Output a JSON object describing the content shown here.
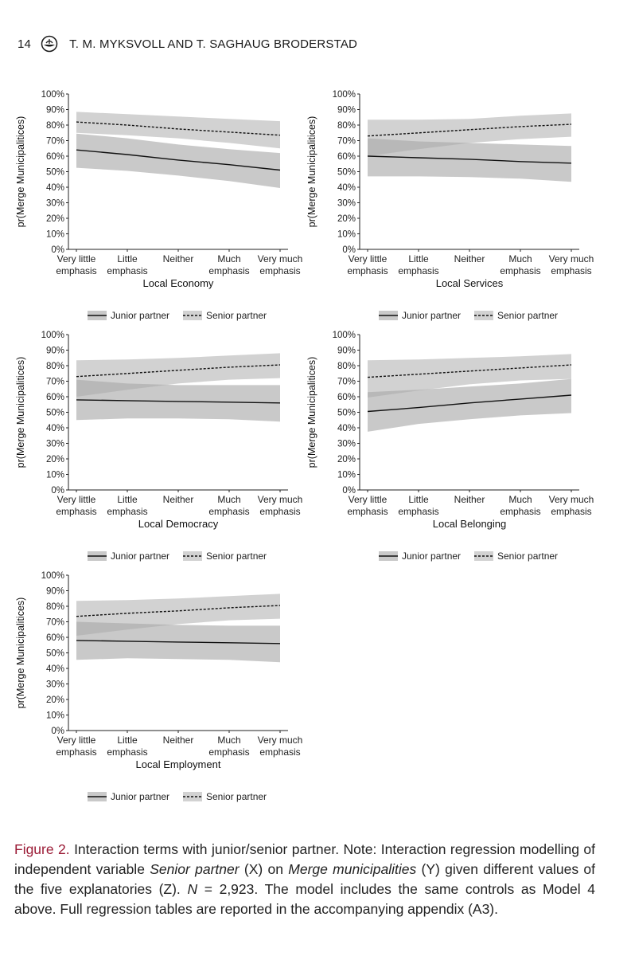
{
  "header": {
    "page_number": "14",
    "authors": "T. M. MYKSVOLL AND T. SAGHAUG BRODERSTAD"
  },
  "legend": {
    "junior": "Junior partner",
    "senior": "Senior partner"
  },
  "chart_data": [
    {
      "type": "line",
      "title": "Local Economy",
      "xlabel": "Local Economy",
      "ylabel": "pr(Merge Municipalitices)",
      "x_ticks": [
        [
          "Very little",
          "emphasis"
        ],
        [
          "Little",
          "emphasis"
        ],
        [
          "Neither",
          ""
        ],
        [
          "Much",
          "emphasis"
        ],
        [
          "Very much",
          "emphasis"
        ]
      ],
      "y_ticks": [
        "0%",
        "10%",
        "20%",
        "30%",
        "40%",
        "50%",
        "60%",
        "70%",
        "80%",
        "90%",
        "100%"
      ],
      "ylim": [
        0,
        100
      ],
      "series": [
        {
          "name": "Junior partner",
          "values": [
            64,
            61,
            57.5,
            54.5,
            51
          ],
          "lower": [
            52.5,
            50.5,
            47.5,
            44,
            39.5
          ],
          "upper": [
            74.5,
            71.5,
            67.5,
            64.5,
            62
          ]
        },
        {
          "name": "Senior partner",
          "values": [
            82,
            80,
            77.5,
            75.5,
            73.5
          ],
          "lower": [
            75,
            73.5,
            71.5,
            68.5,
            65
          ],
          "upper": [
            88.5,
            87,
            85.5,
            84,
            82.5
          ]
        }
      ]
    },
    {
      "type": "line",
      "title": "Local Services",
      "xlabel": "Local Services",
      "ylabel": "pr(Merge Municipalitices)",
      "x_ticks": [
        [
          "Very little",
          "emphasis"
        ],
        [
          "Little",
          "emphasis"
        ],
        [
          "Neither",
          ""
        ],
        [
          "Much",
          "emphasis"
        ],
        [
          "Very much",
          "emphasis"
        ]
      ],
      "y_ticks": [
        "0%",
        "10%",
        "20%",
        "30%",
        "40%",
        "50%",
        "60%",
        "70%",
        "80%",
        "90%",
        "100%"
      ],
      "ylim": [
        0,
        100
      ],
      "series": [
        {
          "name": "Junior partner",
          "values": [
            60,
            59,
            58,
            56.5,
            55.5
          ],
          "lower": [
            47,
            47,
            46.5,
            45.5,
            43.5
          ],
          "upper": [
            71.5,
            69.5,
            68.5,
            67.5,
            66.5
          ]
        },
        {
          "name": "Senior partner",
          "values": [
            73,
            75,
            77,
            79,
            80.5
          ],
          "lower": [
            60,
            64.5,
            68.5,
            71,
            72.5
          ],
          "upper": [
            83.5,
            83.5,
            84,
            86,
            87.5
          ]
        }
      ]
    },
    {
      "type": "line",
      "title": "Local Democracy",
      "xlabel": "Local Democracy",
      "ylabel": "pr(Merge Municipalitices)",
      "x_ticks": [
        [
          "Very little",
          "emphasis"
        ],
        [
          "Little",
          "emphasis"
        ],
        [
          "Neither",
          ""
        ],
        [
          "Much",
          "emphasis"
        ],
        [
          "Very much",
          "emphasis"
        ]
      ],
      "y_ticks": [
        "0%",
        "10%",
        "20%",
        "30%",
        "40%",
        "50%",
        "60%",
        "70%",
        "80%",
        "90%",
        "100%"
      ],
      "ylim": [
        0,
        100
      ],
      "series": [
        {
          "name": "Junior partner",
          "values": [
            58,
            57.5,
            57,
            56.5,
            56
          ],
          "lower": [
            45,
            46,
            46,
            45.5,
            44
          ],
          "upper": [
            71,
            68.5,
            67.5,
            67.5,
            67.5
          ]
        },
        {
          "name": "Senior partner",
          "values": [
            73,
            75,
            77,
            79,
            80.5
          ],
          "lower": [
            60,
            64.5,
            68.5,
            71,
            72
          ],
          "upper": [
            83.5,
            84,
            85,
            86.5,
            88
          ]
        }
      ]
    },
    {
      "type": "line",
      "title": "Local Belonging",
      "xlabel": "Local Belonging",
      "ylabel": "pr(Merge Municipalitices)",
      "x_ticks": [
        [
          "Very little",
          "emphasis"
        ],
        [
          "Little",
          "emphasis"
        ],
        [
          "Neither",
          ""
        ],
        [
          "Much",
          "emphasis"
        ],
        [
          "Very much",
          "emphasis"
        ]
      ],
      "y_ticks": [
        "0%",
        "10%",
        "20%",
        "30%",
        "40%",
        "50%",
        "60%",
        "70%",
        "80%",
        "90%",
        "100%"
      ],
      "ylim": [
        0,
        100
      ],
      "series": [
        {
          "name": "Junior partner",
          "values": [
            50.5,
            53,
            56,
            58.5,
            61
          ],
          "lower": [
            37.5,
            42.5,
            45.5,
            48,
            49.5
          ],
          "upper": [
            63,
            64.5,
            66.5,
            68.5,
            71.5
          ]
        },
        {
          "name": "Senior partner",
          "values": [
            72.5,
            74.5,
            76.5,
            78.5,
            80.5
          ],
          "lower": [
            59.5,
            64,
            68,
            70.5,
            71.5
          ],
          "upper": [
            83.5,
            84,
            85,
            86,
            87.5
          ]
        }
      ]
    },
    {
      "type": "line",
      "title": "Local Employment",
      "xlabel": "Local Employment",
      "ylabel": "pr(Merge Municipalitices)",
      "x_ticks": [
        [
          "Very little",
          "emphasis"
        ],
        [
          "Little",
          "emphasis"
        ],
        [
          "Neither",
          ""
        ],
        [
          "Much",
          "emphasis"
        ],
        [
          "Very much",
          "emphasis"
        ]
      ],
      "y_ticks": [
        "0%",
        "10%",
        "20%",
        "30%",
        "40%",
        "50%",
        "60%",
        "70%",
        "80%",
        "90%",
        "100%"
      ],
      "ylim": [
        0,
        100
      ],
      "series": [
        {
          "name": "Junior partner",
          "values": [
            58,
            57.5,
            57,
            56.5,
            56
          ],
          "lower": [
            45.5,
            46.5,
            46,
            45.5,
            44
          ],
          "upper": [
            70,
            69,
            68,
            67.5,
            67.5
          ]
        },
        {
          "name": "Senior partner",
          "values": [
            73.5,
            75.5,
            77,
            79,
            80.5
          ],
          "lower": [
            61,
            65,
            68.5,
            71,
            72
          ],
          "upper": [
            83.5,
            84,
            85,
            86.5,
            88
          ]
        }
      ]
    }
  ],
  "caption": {
    "label": "Figure 2.",
    "text_1": " Interaction terms with junior/senior partner. Note: Interaction regression modelling of independent variable ",
    "em_1": "Senior partner",
    "text_2": " (X) on ",
    "em_2": "Merge municipalities",
    "text_3": " (Y) given different values of the five explanatories (Z). ",
    "em_3": "N",
    "text_4": " = 2,923. The model includes the same controls as Model 4 above. Full regression tables are reported in the accompanying appendix (A3)."
  }
}
